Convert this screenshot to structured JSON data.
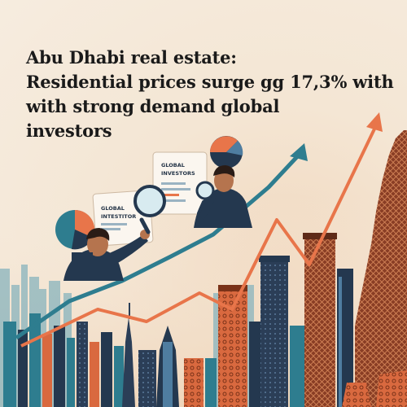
{
  "headline": {
    "line1": "Abu Dhabi real estate:",
    "line2": "Residential prices surge gg 17,3% with",
    "line3": "with strong demand global",
    "line4": "investors"
  },
  "illustration": {
    "card_left": {
      "line1": "GLOBAL",
      "line2": "INTESTITOR"
    },
    "card_right": {
      "line1": "GLOBAL",
      "line2": "INVESTORS"
    },
    "icons": [
      "magnifier-icon",
      "pie-chart-icon",
      "trend-arrow-icon"
    ]
  },
  "colors": {
    "background": "#f4e6d4",
    "orange": "#e8754a",
    "teal": "#2e7d8f",
    "navy": "#24384f",
    "text": "#1a1a1a"
  }
}
